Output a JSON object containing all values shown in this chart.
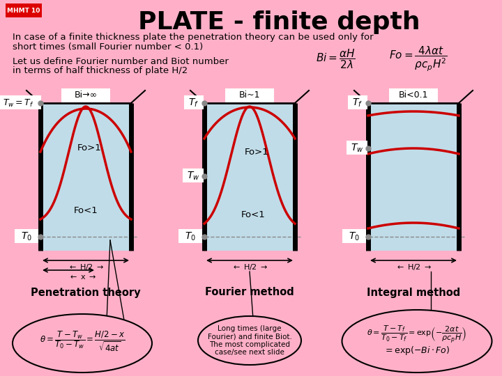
{
  "bg_color": "#ffb0c8",
  "title": "PLATE - finite depth",
  "mhmt_label": "MHMT 10",
  "mhmt_bg": "#dd0000",
  "body_text1": "In case of a finite thickness plate the penetration theory can be used only for",
  "body_text2": "short times (small Fourier number < 0.1)",
  "body_text3a": "Let us define Fourier number and Biot number",
  "body_text3b": "in terms of half thickness of plate H/2",
  "diagram_labels": [
    "Bi→∞",
    "Bi~1",
    "Bi<0.1"
  ],
  "bottom_labels": [
    "Penetration theory",
    "Fourier method",
    "Integral method"
  ],
  "hatch_facecolor": "#b8dce8",
  "red_line_color": "#cc0000",
  "dashed_color": "#888888",
  "plate_bg": "#c0dce8"
}
